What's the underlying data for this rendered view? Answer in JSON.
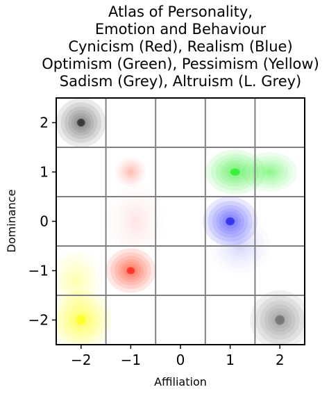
{
  "chart_data": {
    "type": "heatmap",
    "title_lines": [
      "Atlas of Personality,",
      "Emotion and Behaviour",
      "Cynicism (Red), Realism (Blue)",
      "Optimism (Green), Pessimism (Yellow)",
      "Sadism (Grey), Altruism (L. Grey)"
    ],
    "xlabel": "Affiliation",
    "ylabel": "Dominance",
    "xlim": [
      -2.5,
      2.5
    ],
    "ylim": [
      -2.5,
      2.5
    ],
    "x_ticks": [
      -2,
      -1,
      0,
      1,
      2
    ],
    "y_ticks": [
      -2,
      -1,
      0,
      1,
      2
    ],
    "x_tick_labels": [
      "−2",
      "−1",
      "0",
      "1",
      "2"
    ],
    "y_tick_labels": [
      "−2",
      "−1",
      "0",
      "1",
      "2"
    ],
    "grid_lines": [
      -1.5,
      -0.5,
      0.5,
      1.5
    ],
    "grid": true,
    "series": [
      {
        "label": "Cynicism",
        "color": "#ff2200",
        "core_color": "#ff0000",
        "blobs": [
          {
            "x": -1.0,
            "y": -1.0,
            "rx": 0.5,
            "ry": 0.45,
            "weight": 1.0
          },
          {
            "x": -1.0,
            "y": 1.0,
            "rx": 0.3,
            "ry": 0.3,
            "weight": 0.35
          },
          {
            "x": -0.9,
            "y": 0.0,
            "rx": 0.55,
            "ry": 0.75,
            "weight": 0.12
          }
        ]
      },
      {
        "label": "Realism",
        "color": "#2020ff",
        "core_color": "#0000dd",
        "blobs": [
          {
            "x": 1.0,
            "y": 0.0,
            "rx": 0.55,
            "ry": 0.5,
            "weight": 1.0
          },
          {
            "x": 1.2,
            "y": -0.5,
            "rx": 0.6,
            "ry": 0.55,
            "weight": 0.2
          }
        ]
      },
      {
        "label": "Optimism",
        "color": "#22ee22",
        "core_color": "#00ee00",
        "blobs": [
          {
            "x": 1.1,
            "y": 1.0,
            "rx": 0.6,
            "ry": 0.45,
            "weight": 1.0
          },
          {
            "x": 1.8,
            "y": 1.0,
            "rx": 0.55,
            "ry": 0.4,
            "weight": 0.7
          }
        ]
      },
      {
        "label": "Pessimism",
        "color": "#ffff00",
        "core_color": "#ffff00",
        "blobs": [
          {
            "x": -2.0,
            "y": -2.0,
            "rx": 0.6,
            "ry": 0.6,
            "weight": 1.0
          },
          {
            "x": -2.1,
            "y": -1.2,
            "rx": 0.5,
            "ry": 0.6,
            "weight": 0.4
          }
        ]
      },
      {
        "label": "Sadism",
        "color": "#404040",
        "core_color": "#000000",
        "blobs": [
          {
            "x": -2.0,
            "y": 2.0,
            "rx": 0.5,
            "ry": 0.5,
            "weight": 1.0
          }
        ]
      },
      {
        "label": "Altruism",
        "color": "#707070",
        "core_color": "#555555",
        "blobs": [
          {
            "x": 2.0,
            "y": -2.0,
            "rx": 0.6,
            "ry": 0.6,
            "weight": 1.0
          }
        ]
      }
    ]
  }
}
